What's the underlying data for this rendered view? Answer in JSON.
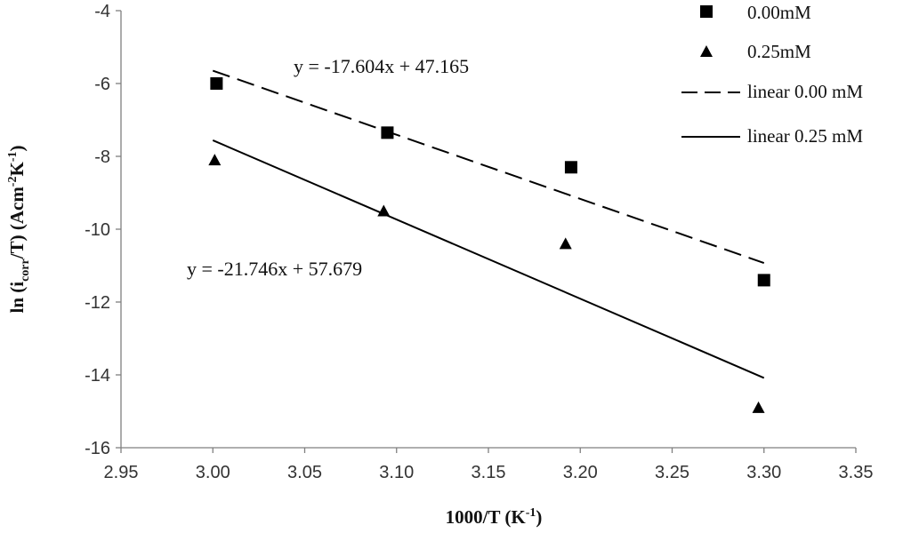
{
  "chart_data": {
    "type": "scatter",
    "xlabel": {
      "main": "1000/T (K",
      "sup": "-1",
      "end": ")"
    },
    "ylabel": {
      "p1": "ln (i",
      "sub": "corr",
      "p2": "/T) (Acm",
      "sup1": "-2",
      "p3": "K",
      "sup2": "-1",
      "p4": ")"
    },
    "xlim": [
      2.95,
      3.35
    ],
    "ylim": [
      -16,
      -4
    ],
    "x_ticks": [
      2.95,
      3.0,
      3.05,
      3.1,
      3.15,
      3.2,
      3.25,
      3.3,
      3.35
    ],
    "x_tick_labels": [
      "2.95",
      "3.00",
      "3.05",
      "3.10",
      "3.15",
      "3.20",
      "3.25",
      "3.30",
      "3.35"
    ],
    "y_ticks": [
      -4,
      -6,
      -8,
      -10,
      -12,
      -14,
      -16
    ],
    "y_tick_labels": [
      "-4",
      "-6",
      "-8",
      "-10",
      "-12",
      "-14",
      "-16"
    ],
    "grid": false,
    "legend_position": "top-right",
    "series": [
      {
        "name": "0.00mM",
        "marker": "square",
        "x": [
          3.002,
          3.095,
          3.195,
          3.3
        ],
        "y": [
          -6.0,
          -7.35,
          -8.3,
          -11.4
        ]
      },
      {
        "name": "0.25mM",
        "marker": "triangle",
        "x": [
          3.001,
          3.093,
          3.192,
          3.297
        ],
        "y": [
          -8.1,
          -9.5,
          -10.4,
          -14.9
        ]
      }
    ],
    "trendlines": [
      {
        "name": "linear 0.00 mM",
        "style": "dashed",
        "slope": -17.604,
        "intercept": 47.165,
        "x_range": [
          3.0,
          3.3
        ],
        "equation": "y = -17.604x + 47.165"
      },
      {
        "name": "linear 0.25 mM",
        "style": "solid",
        "slope": -21.746,
        "intercept": 57.679,
        "x_range": [
          3.0,
          3.3
        ],
        "equation": "y = -21.746x + 57.679"
      }
    ],
    "colors": {
      "marker": "#000000",
      "axis": "#7f7f7f",
      "text": "#333333"
    }
  }
}
